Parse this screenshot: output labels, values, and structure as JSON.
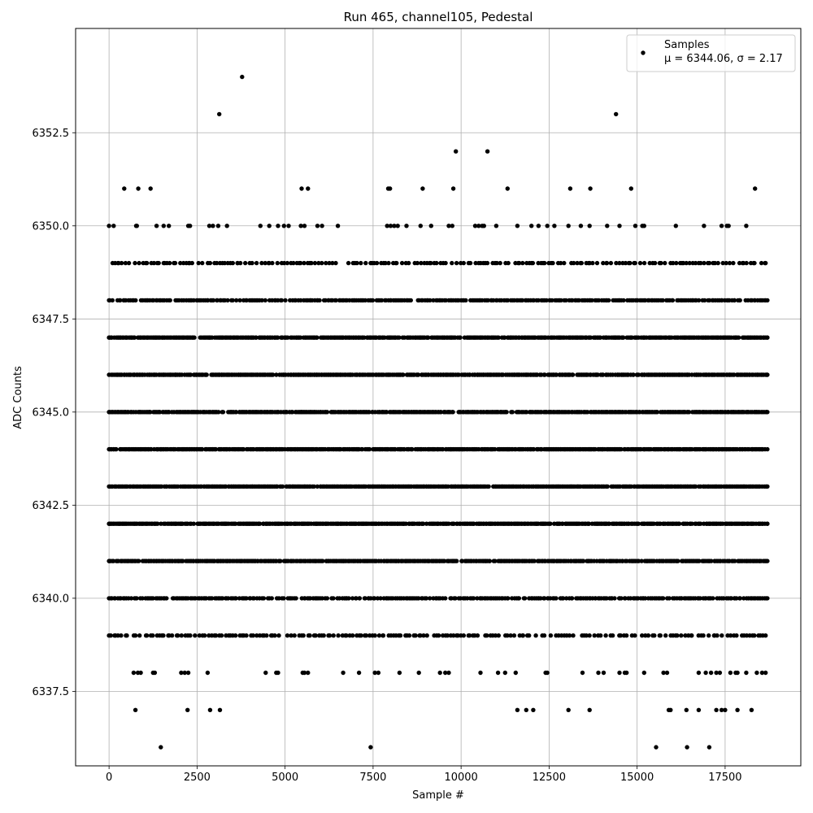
{
  "chart_data": {
    "type": "scatter",
    "title": "Run 465, channel105, Pedestal",
    "xlabel": "Sample #",
    "ylabel": "ADC Counts",
    "xlim": [
      -950,
      19650
    ],
    "ylim": [
      6335.5,
      6355.3
    ],
    "xticks": [
      0,
      2500,
      5000,
      7500,
      10000,
      12500,
      15000,
      17500
    ],
    "xtick_labels": [
      "0",
      "2500",
      "5000",
      "7500",
      "10000",
      "12500",
      "15000",
      "17500"
    ],
    "yticks": [
      6337.5,
      6340.0,
      6342.5,
      6345.0,
      6347.5,
      6350.0,
      6352.5
    ],
    "ytick_labels": [
      "6337.5",
      "6340.0",
      "6342.5",
      "6345.0",
      "6347.5",
      "6350.0",
      "6352.5"
    ],
    "grid": true,
    "legend_position": "top-right",
    "legend": {
      "label": "Samples",
      "stats_line": "μ = 6344.06, σ = 2.17"
    },
    "marker_color": "#000000",
    "series": [
      {
        "name": "Samples",
        "x_range": [
          0,
          18700
        ],
        "y_levels": [
          {
            "y": 6354,
            "x": [
              3780
            ]
          },
          {
            "y": 6353,
            "x": [
              3130,
              14400
            ]
          },
          {
            "y": 6352,
            "x": [
              9850,
              10750
            ]
          },
          {
            "y": 6351,
            "x": [
              430,
              830,
              1180,
              5470,
              5650,
              7930,
              7980,
              8910,
              9780,
              11320,
              13100,
              13670,
              14830,
              18350
            ]
          },
          {
            "y": 6350,
            "x": [
              0,
              130,
              770,
              790,
              1350,
              1550,
              1700,
              2250,
              2300,
              2850,
              2950,
              3100,
              3350,
              4300,
              4550,
              4800,
              4970,
              5100,
              5450,
              5550,
              5920,
              6050,
              6500,
              7900,
              8000,
              8100,
              8200,
              8450,
              8850,
              9150,
              9650,
              9750,
              10400,
              10500,
              10600,
              10650,
              11000,
              11600,
              12000,
              12200,
              12450,
              12650,
              13050,
              13400,
              13650,
              14150,
              14500,
              14950,
              15150,
              15200,
              16100,
              16900,
              17400,
              17550,
              17600,
              18100
            ]
          },
          {
            "y": 6347,
            "x_range": [
              0,
              18700
            ],
            "count": 520
          },
          {
            "y": 6346,
            "x_range": [
              0,
              18700
            ],
            "count": 520
          },
          {
            "y": 6345,
            "x_range": [
              0,
              18700
            ],
            "count": 560
          },
          {
            "y": 6344,
            "x_range": [
              0,
              18700
            ],
            "count": 580
          },
          {
            "y": 6343,
            "x_range": [
              0,
              18700
            ],
            "count": 560
          },
          {
            "y": 6342,
            "x_range": [
              0,
              18700
            ],
            "count": 520
          },
          {
            "y": 6341,
            "x_range": [
              0,
              18700
            ],
            "count": 500
          },
          {
            "y": 6340,
            "x_range": [
              0,
              18700
            ],
            "count": 360
          },
          {
            "y": 6349,
            "x_range": [
              100,
              18650
            ],
            "count": 230
          },
          {
            "y": 6348,
            "x_range": [
              0,
              18700
            ],
            "count": 360
          },
          {
            "y": 6339,
            "x_range": [
              0,
              18650
            ],
            "count": 230
          },
          {
            "y": 6338,
            "x": [
              700,
              820,
              900,
              1250,
              1300,
              2050,
              2150,
              2250,
              2800,
              4450,
              4750,
              4800,
              5500,
              5550,
              5650,
              6650,
              7100,
              7550,
              7650,
              8250,
              8800,
              9400,
              9550,
              9650,
              10550,
              11050,
              11250,
              11550,
              12400,
              12450,
              13450,
              13900,
              14050,
              14500,
              14650,
              14700,
              15200,
              15750,
              15850,
              16750,
              16950,
              17100,
              17250,
              17350,
              17650,
              17800,
              17850,
              18100,
              18400,
              18550,
              18650
            ]
          },
          {
            "y": 6337,
            "x": [
              750,
              2230,
              2870,
              3150,
              11600,
              11850,
              12050,
              13050,
              13650,
              15900,
              15950,
              16400,
              16750,
              17250,
              17400,
              17500,
              17850,
              18250
            ]
          },
          {
            "y": 6336,
            "x": [
              1470,
              7430,
              15540,
              16420,
              17050
            ]
          }
        ]
      }
    ]
  }
}
